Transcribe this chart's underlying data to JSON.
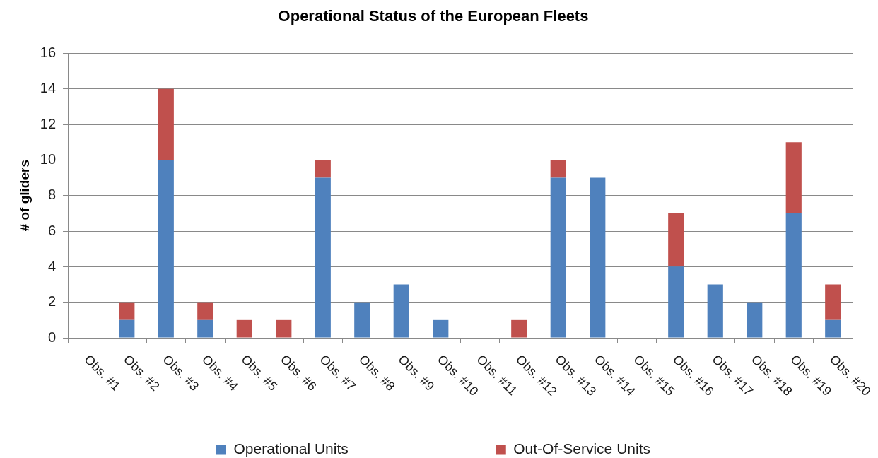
{
  "chart_data": {
    "type": "bar",
    "title": "Operational Status of the European Fleets",
    "ylabel": "# of gliders",
    "categories": [
      "Obs. #1",
      "Obs. #2",
      "Obs. #3",
      "Obs. #4",
      "Obs. #5",
      "Obs. #6",
      "Obs. #7",
      "Obs. #8",
      "Obs. #9",
      "Obs. #10",
      "Obs. #11",
      "Obs. #12",
      "Obs. #13",
      "Obs. #14",
      "Obs. #15",
      "Obs. #16",
      "Obs. #17",
      "Obs. #18",
      "Obs. #19",
      "Obs. #20"
    ],
    "series": [
      {
        "name": "Operational Units",
        "color": "#4f81bd",
        "values": [
          0,
          1,
          10,
          1,
          0,
          0,
          9,
          2,
          3,
          1,
          0,
          0,
          9,
          9,
          0,
          4,
          3,
          2,
          7,
          1
        ]
      },
      {
        "name": "Out-Of-Service Units",
        "color": "#c0504d",
        "values": [
          0,
          1,
          4,
          1,
          1,
          1,
          1,
          0,
          0,
          0,
          0,
          1,
          1,
          0,
          0,
          3,
          0,
          0,
          4,
          2
        ]
      }
    ],
    "stacked": true,
    "ylim": [
      0,
      16
    ],
    "yticks": [
      0,
      2,
      4,
      6,
      8,
      10,
      12,
      14,
      16
    ],
    "grid": "y",
    "legend": "bottom"
  }
}
